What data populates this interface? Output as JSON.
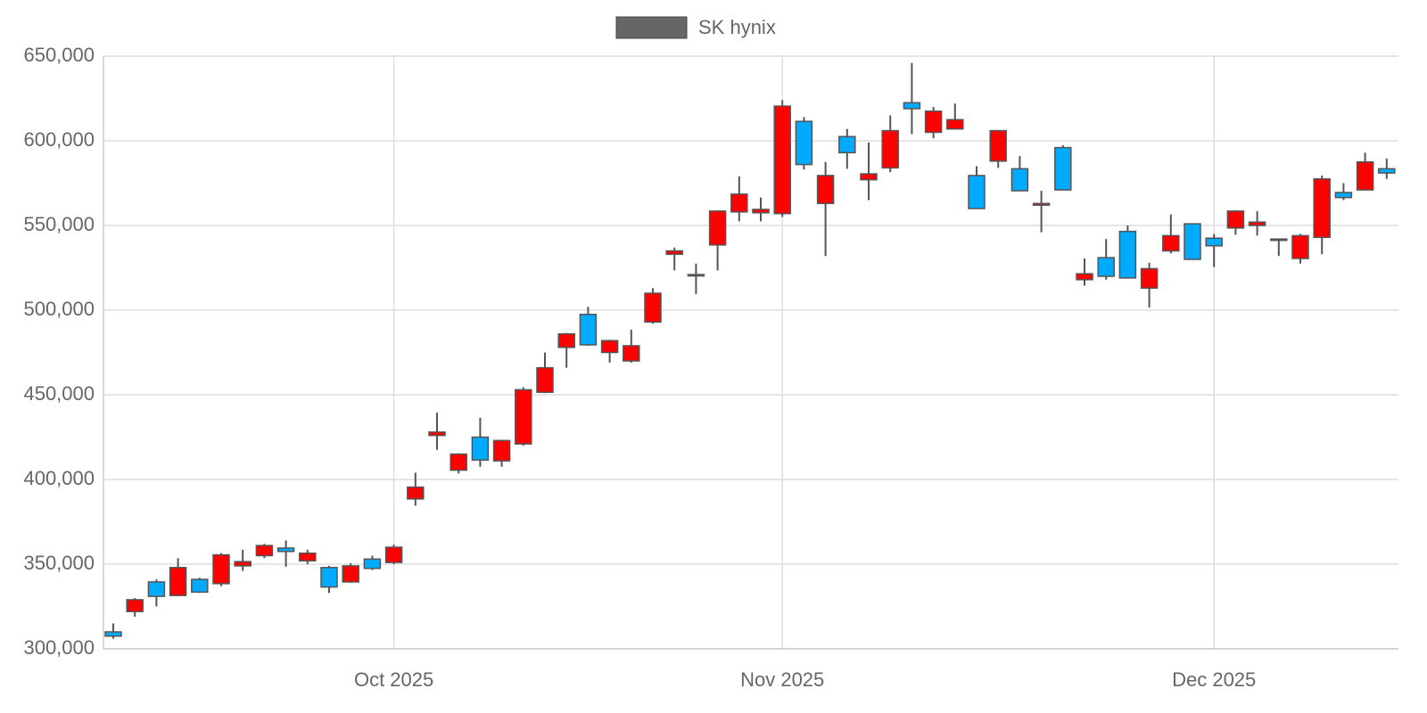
{
  "chart_data": {
    "type": "candlestick",
    "categories": [
      null,
      null,
      null,
      null,
      null,
      null,
      null,
      null,
      null,
      null,
      null,
      null,
      null,
      "Oct 2025",
      null,
      null,
      null,
      null,
      null,
      null,
      null,
      null,
      null,
      null,
      null,
      null,
      null,
      null,
      null,
      null,
      null,
      "Nov 2025",
      null,
      null,
      null,
      null,
      null,
      null,
      null,
      null,
      null,
      null,
      null,
      null,
      null,
      null,
      null,
      null,
      null,
      null,
      null,
      "Dec 2025",
      null,
      null,
      null,
      null,
      null,
      null,
      null,
      null
    ],
    "series": [
      {
        "name": "SK hynix",
        "color": "#666666",
        "up_color": "#ff0000",
        "down_color": "#00aaff",
        "open": [
          310000,
          322000,
          339500,
          331500,
          341000,
          338500,
          349000,
          355000,
          359500,
          352000,
          348000,
          339500,
          353000,
          351000,
          388500,
          426000,
          405500,
          425000,
          411000,
          421000,
          451500,
          478000,
          497500,
          475000,
          470000,
          493000,
          533000,
          520500,
          538500,
          558000,
          557500,
          557000,
          611500,
          563000,
          602500,
          577000,
          584000,
          622500,
          605000,
          607000,
          579500,
          588000,
          583500,
          562000,
          596000,
          518000,
          531000,
          546500,
          513000,
          535000,
          551000,
          542500,
          548500,
          550000,
          542000,
          530500,
          543000,
          569500,
          571000,
          583500
        ],
        "high": [
          315000,
          330000,
          341000,
          353500,
          342000,
          356500,
          358500,
          362000,
          364000,
          358500,
          349000,
          350500,
          355000,
          361500,
          404000,
          439500,
          415500,
          436500,
          423500,
          454500,
          475000,
          486500,
          502000,
          482500,
          488500,
          513000,
          537000,
          527500,
          559000,
          579000,
          566500,
          624000,
          614000,
          587500,
          607000,
          599000,
          615000,
          646000,
          620000,
          622000,
          585000,
          606000,
          591000,
          570500,
          597500,
          530500,
          542000,
          550000,
          528000,
          556500,
          551000,
          545000,
          559000,
          558500,
          542000,
          545000,
          579500,
          575000,
          593000,
          589500
        ],
        "low": [
          306000,
          319000,
          325000,
          331000,
          333000,
          337000,
          346000,
          353500,
          348500,
          350000,
          333000,
          339000,
          346500,
          350000,
          384500,
          417500,
          403500,
          407500,
          407500,
          420000,
          451000,
          466000,
          479000,
          469000,
          469000,
          492000,
          523500,
          509500,
          523500,
          552500,
          552500,
          555000,
          583000,
          532000,
          583500,
          565000,
          581500,
          604000,
          601500,
          607000,
          560000,
          584000,
          570500,
          546000,
          571000,
          514500,
          518000,
          519000,
          501500,
          533500,
          530000,
          525500,
          544500,
          544000,
          532000,
          527500,
          533000,
          565000,
          571000,
          577500
        ],
        "close": [
          307500,
          329000,
          331000,
          348000,
          333500,
          355500,
          351500,
          361000,
          357500,
          356500,
          336500,
          349000,
          347500,
          360000,
          395500,
          428000,
          415000,
          411500,
          423000,
          453000,
          466000,
          486000,
          479500,
          482000,
          479000,
          510000,
          535000,
          521000,
          558500,
          568500,
          559500,
          620500,
          586000,
          579500,
          593000,
          580500,
          606000,
          619000,
          617500,
          612500,
          560000,
          606000,
          570500,
          563000,
          571000,
          521500,
          520000,
          519000,
          524500,
          544000,
          530000,
          538000,
          558500,
          552000,
          542000,
          544000,
          577500,
          566500,
          587500,
          581000
        ]
      }
    ],
    "ylim": [
      300000,
      650000
    ],
    "yticks": [
      {
        "value": 300000,
        "label": "300,000"
      },
      {
        "value": 350000,
        "label": "350,000"
      },
      {
        "value": 400000,
        "label": "400,000"
      },
      {
        "value": 450000,
        "label": "450,000"
      },
      {
        "value": 500000,
        "label": "500,000"
      },
      {
        "value": 550000,
        "label": "550,000"
      },
      {
        "value": 600000,
        "label": "600,000"
      },
      {
        "value": 650000,
        "label": "650,000"
      }
    ],
    "grid": true,
    "legend": "top"
  }
}
